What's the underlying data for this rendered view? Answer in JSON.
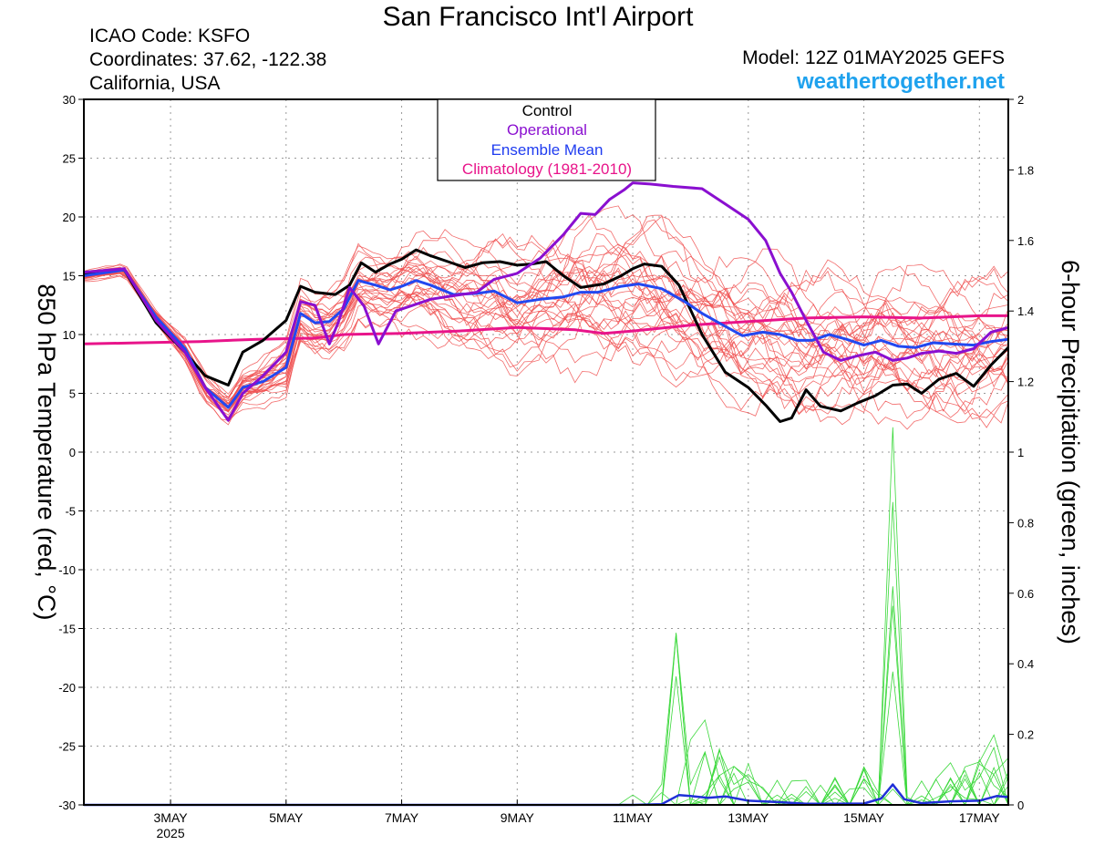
{
  "header": {
    "title": "San Francisco Int'l Airport",
    "icao": "ICAO Code: KSFO",
    "coords": "Coordinates: 37.62, -122.38",
    "region": "California, USA",
    "model": "Model: 12Z 01MAY2025 GEFS",
    "site": "weathertogether.net"
  },
  "chart_data": {
    "type": "line",
    "title": "San Francisco Int'l Airport",
    "ylabel": "850 hPa Temperature (red, °C)",
    "y2label": "6-hour Precipitation (green, inches)",
    "ylim": [
      -30,
      30
    ],
    "y2lim": [
      0,
      2
    ],
    "xlim": [
      1.5,
      17.5
    ],
    "x_unit": "day of May 2025",
    "yticks": [
      "30",
      "25",
      "20",
      "15",
      "10",
      "5",
      "0",
      "-5",
      "-10",
      "-15",
      "-20",
      "-25",
      "-30"
    ],
    "y2ticks": [
      "2",
      "1.8",
      "1.6",
      "1.4",
      "1.2",
      "1",
      "0.8",
      "0.6",
      "0.4",
      "0.2",
      "0"
    ],
    "xticks": [
      {
        "x": 3,
        "label": "3MAY",
        "sub": "2025"
      },
      {
        "x": 5,
        "label": "5MAY",
        "sub": ""
      },
      {
        "x": 7,
        "label": "7MAY",
        "sub": ""
      },
      {
        "x": 9,
        "label": "9MAY",
        "sub": ""
      },
      {
        "x": 11,
        "label": "11MAY",
        "sub": ""
      },
      {
        "x": 13,
        "label": "13MAY",
        "sub": ""
      },
      {
        "x": 15,
        "label": "15MAY",
        "sub": ""
      },
      {
        "x": 17,
        "label": "17MAY",
        "sub": ""
      }
    ],
    "grid": true,
    "legend_position": "top-center",
    "legend": [
      {
        "label": "Control",
        "color": "#000000"
      },
      {
        "label": "Operational",
        "color": "#8a0fd0"
      },
      {
        "label": "Ensemble Mean",
        "color": "#1f3cf0"
      },
      {
        "label": "Climatology (1981-2010)",
        "color": "#e8148a"
      }
    ],
    "colors": {
      "members": "#f05050",
      "control": "#000000",
      "operational": "#8a0fd0",
      "mean": "#2248f0",
      "climatology": "#e8148a",
      "precip_members": "#3ad83a",
      "precip_mean": "#2030d8"
    },
    "series": [
      {
        "name": "Control",
        "axis": "temperature",
        "x": [
          1.5,
          2.2,
          2.75,
          3.25,
          3.6,
          4.0,
          4.25,
          4.6,
          5.0,
          5.25,
          5.5,
          5.85,
          6.1,
          6.3,
          6.55,
          6.8,
          7.0,
          7.25,
          7.5,
          7.8,
          8.1,
          8.4,
          8.7,
          9.0,
          9.25,
          9.5,
          9.8,
          10.1,
          10.5,
          10.8,
          11.0,
          11.2,
          11.5,
          11.8,
          12.2,
          12.6,
          13.0,
          13.3,
          13.55,
          13.75,
          14.0,
          14.25,
          14.6,
          14.9,
          15.2,
          15.5,
          15.75,
          16.0,
          16.3,
          16.6,
          16.9,
          17.2,
          17.5
        ],
        "y": [
          15.2,
          15.5,
          11,
          8.5,
          6.5,
          5.7,
          8.5,
          9.5,
          11.2,
          14.1,
          13.6,
          13.4,
          14.2,
          16.1,
          15.3,
          16,
          16.4,
          17.2,
          16.7,
          16.2,
          15.7,
          16.1,
          16.2,
          15.9,
          16,
          16.2,
          15,
          14,
          14.3,
          15,
          15.6,
          16,
          15.8,
          14.2,
          10,
          6.8,
          5.5,
          4,
          2.6,
          2.9,
          5.3,
          3.9,
          3.5,
          4.2,
          4.8,
          5.7,
          5.8,
          5,
          6.2,
          6.7,
          5.6,
          7.4,
          8.9
        ]
      },
      {
        "name": "Operational",
        "axis": "temperature",
        "x": [
          1.5,
          2.2,
          2.75,
          3.25,
          3.6,
          4.0,
          4.25,
          4.6,
          5.0,
          5.25,
          5.5,
          5.75,
          5.9,
          6.1,
          6.35,
          6.6,
          6.9,
          7.2,
          7.5,
          7.9,
          8.3,
          8.6,
          9.0,
          9.4,
          9.8,
          10.1,
          10.35,
          10.6,
          10.85,
          11.0,
          11.3,
          11.7,
          12.2,
          12.6,
          13.0,
          13.3,
          13.55,
          13.75,
          14.0,
          14.3,
          14.6,
          14.9,
          15.2,
          15.5,
          15.75,
          16.0,
          16.3,
          16.6,
          16.9,
          17.2,
          17.5
        ],
        "y": [
          15.3,
          15.6,
          11.2,
          8.5,
          5.5,
          2.7,
          5,
          6.5,
          8.5,
          12.8,
          12.5,
          9.2,
          11,
          14,
          12.4,
          9.2,
          12,
          12.5,
          13,
          13.3,
          13.6,
          14.7,
          15.2,
          16.5,
          18.5,
          20.3,
          20.2,
          21.5,
          22.3,
          22.9,
          22.8,
          22.6,
          22.4,
          21.1,
          19.8,
          18,
          15.2,
          13.6,
          11.2,
          8.5,
          7.8,
          8.2,
          8.5,
          7.8,
          8,
          8.4,
          8.6,
          8.4,
          8.8,
          10.2,
          10.6
        ]
      },
      {
        "name": "Ensemble Mean",
        "axis": "temperature",
        "x": [
          1.5,
          2.2,
          2.75,
          3.25,
          3.6,
          4.0,
          4.25,
          4.6,
          5.0,
          5.25,
          5.5,
          5.75,
          6.0,
          6.25,
          6.55,
          6.8,
          7.0,
          7.25,
          7.5,
          7.9,
          8.3,
          8.6,
          9.0,
          9.4,
          9.8,
          10.1,
          10.4,
          10.8,
          11.1,
          11.5,
          11.9,
          12.2,
          12.6,
          12.9,
          13.25,
          13.55,
          13.85,
          14.1,
          14.4,
          14.7,
          15.0,
          15.3,
          15.6,
          15.9,
          16.2,
          16.5,
          16.9,
          17.2,
          17.5
        ],
        "y": [
          15,
          15.5,
          11.5,
          8.8,
          5.5,
          3.8,
          5.5,
          6,
          7.2,
          11.8,
          11,
          11.1,
          12.2,
          14.6,
          14.2,
          13.8,
          14.1,
          14.6,
          14.2,
          13.4,
          13.5,
          13.7,
          12.7,
          13,
          13.2,
          13.6,
          13.6,
          14.1,
          14.3,
          13.9,
          12.8,
          11.8,
          10.7,
          9.9,
          10.2,
          10,
          9.5,
          9.5,
          10,
          9.6,
          9.1,
          9.5,
          9,
          8.9,
          9.3,
          9.2,
          9.1,
          9.4,
          9.6
        ]
      },
      {
        "name": "Climatology (1981-2010)",
        "axis": "temperature",
        "x": [
          1.5,
          2.5,
          3.5,
          4.5,
          5.5,
          6.0,
          7.0,
          8.0,
          9.0,
          10.0,
          10.5,
          11.0,
          12.0,
          13.0,
          14.0,
          15.0,
          16.0,
          17.0,
          17.5
        ],
        "y": [
          9.2,
          9.3,
          9.4,
          9.6,
          9.7,
          10,
          10.1,
          10.3,
          10.6,
          10.4,
          10.1,
          10.3,
          10.8,
          11.1,
          11.4,
          11.5,
          11.4,
          11.6,
          11.6
        ]
      },
      {
        "name": "Ensemble Mean",
        "axis": "precipitation",
        "x": [
          1.5,
          10.5,
          11.0,
          11.5,
          11.8,
          12.0,
          12.3,
          12.6,
          13.0,
          13.5,
          14.0,
          14.5,
          15.0,
          15.3,
          15.5,
          15.7,
          16.0,
          16.5,
          17.0,
          17.3,
          17.5
        ],
        "y": [
          0,
          0,
          0,
          0.002,
          0.028,
          0.025,
          0.02,
          0.024,
          0.012,
          0.008,
          0.003,
          0.003,
          0.004,
          0.018,
          0.058,
          0.016,
          0.005,
          0.01,
          0.012,
          0.025,
          0.022
        ]
      }
    ]
  }
}
